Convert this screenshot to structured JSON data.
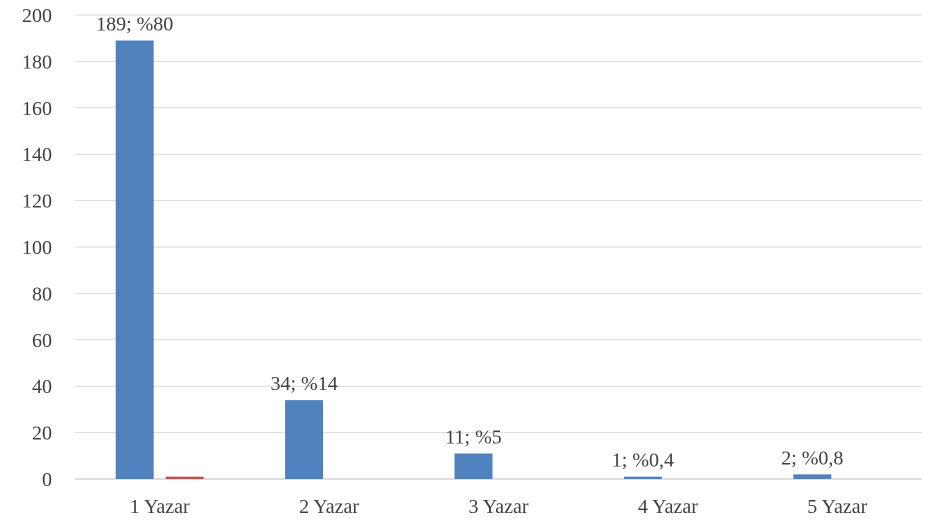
{
  "chart_data": {
    "type": "bar",
    "categories": [
      "1 Yazar",
      "2 Yazar",
      "3 Yazar",
      "4 Yazar",
      "5 Yazar"
    ],
    "series": [
      {
        "values": [
          189,
          34,
          11,
          1,
          2
        ],
        "color": "#4f81bd"
      },
      {
        "values": [
          1,
          0,
          0,
          0,
          0
        ],
        "color": "#c0504d"
      }
    ],
    "data_labels": [
      "189; %80",
      "34; %14",
      "11; %5",
      "1; %0,4",
      "2; %0,8"
    ],
    "yticks": [
      "0",
      "20",
      "40",
      "60",
      "80",
      "100",
      "120",
      "140",
      "160",
      "180",
      "200"
    ],
    "ylim": [
      0,
      200
    ],
    "grid": true,
    "gridline_color": "#d9d9d9",
    "title": "",
    "xlabel": "",
    "ylabel": ""
  }
}
